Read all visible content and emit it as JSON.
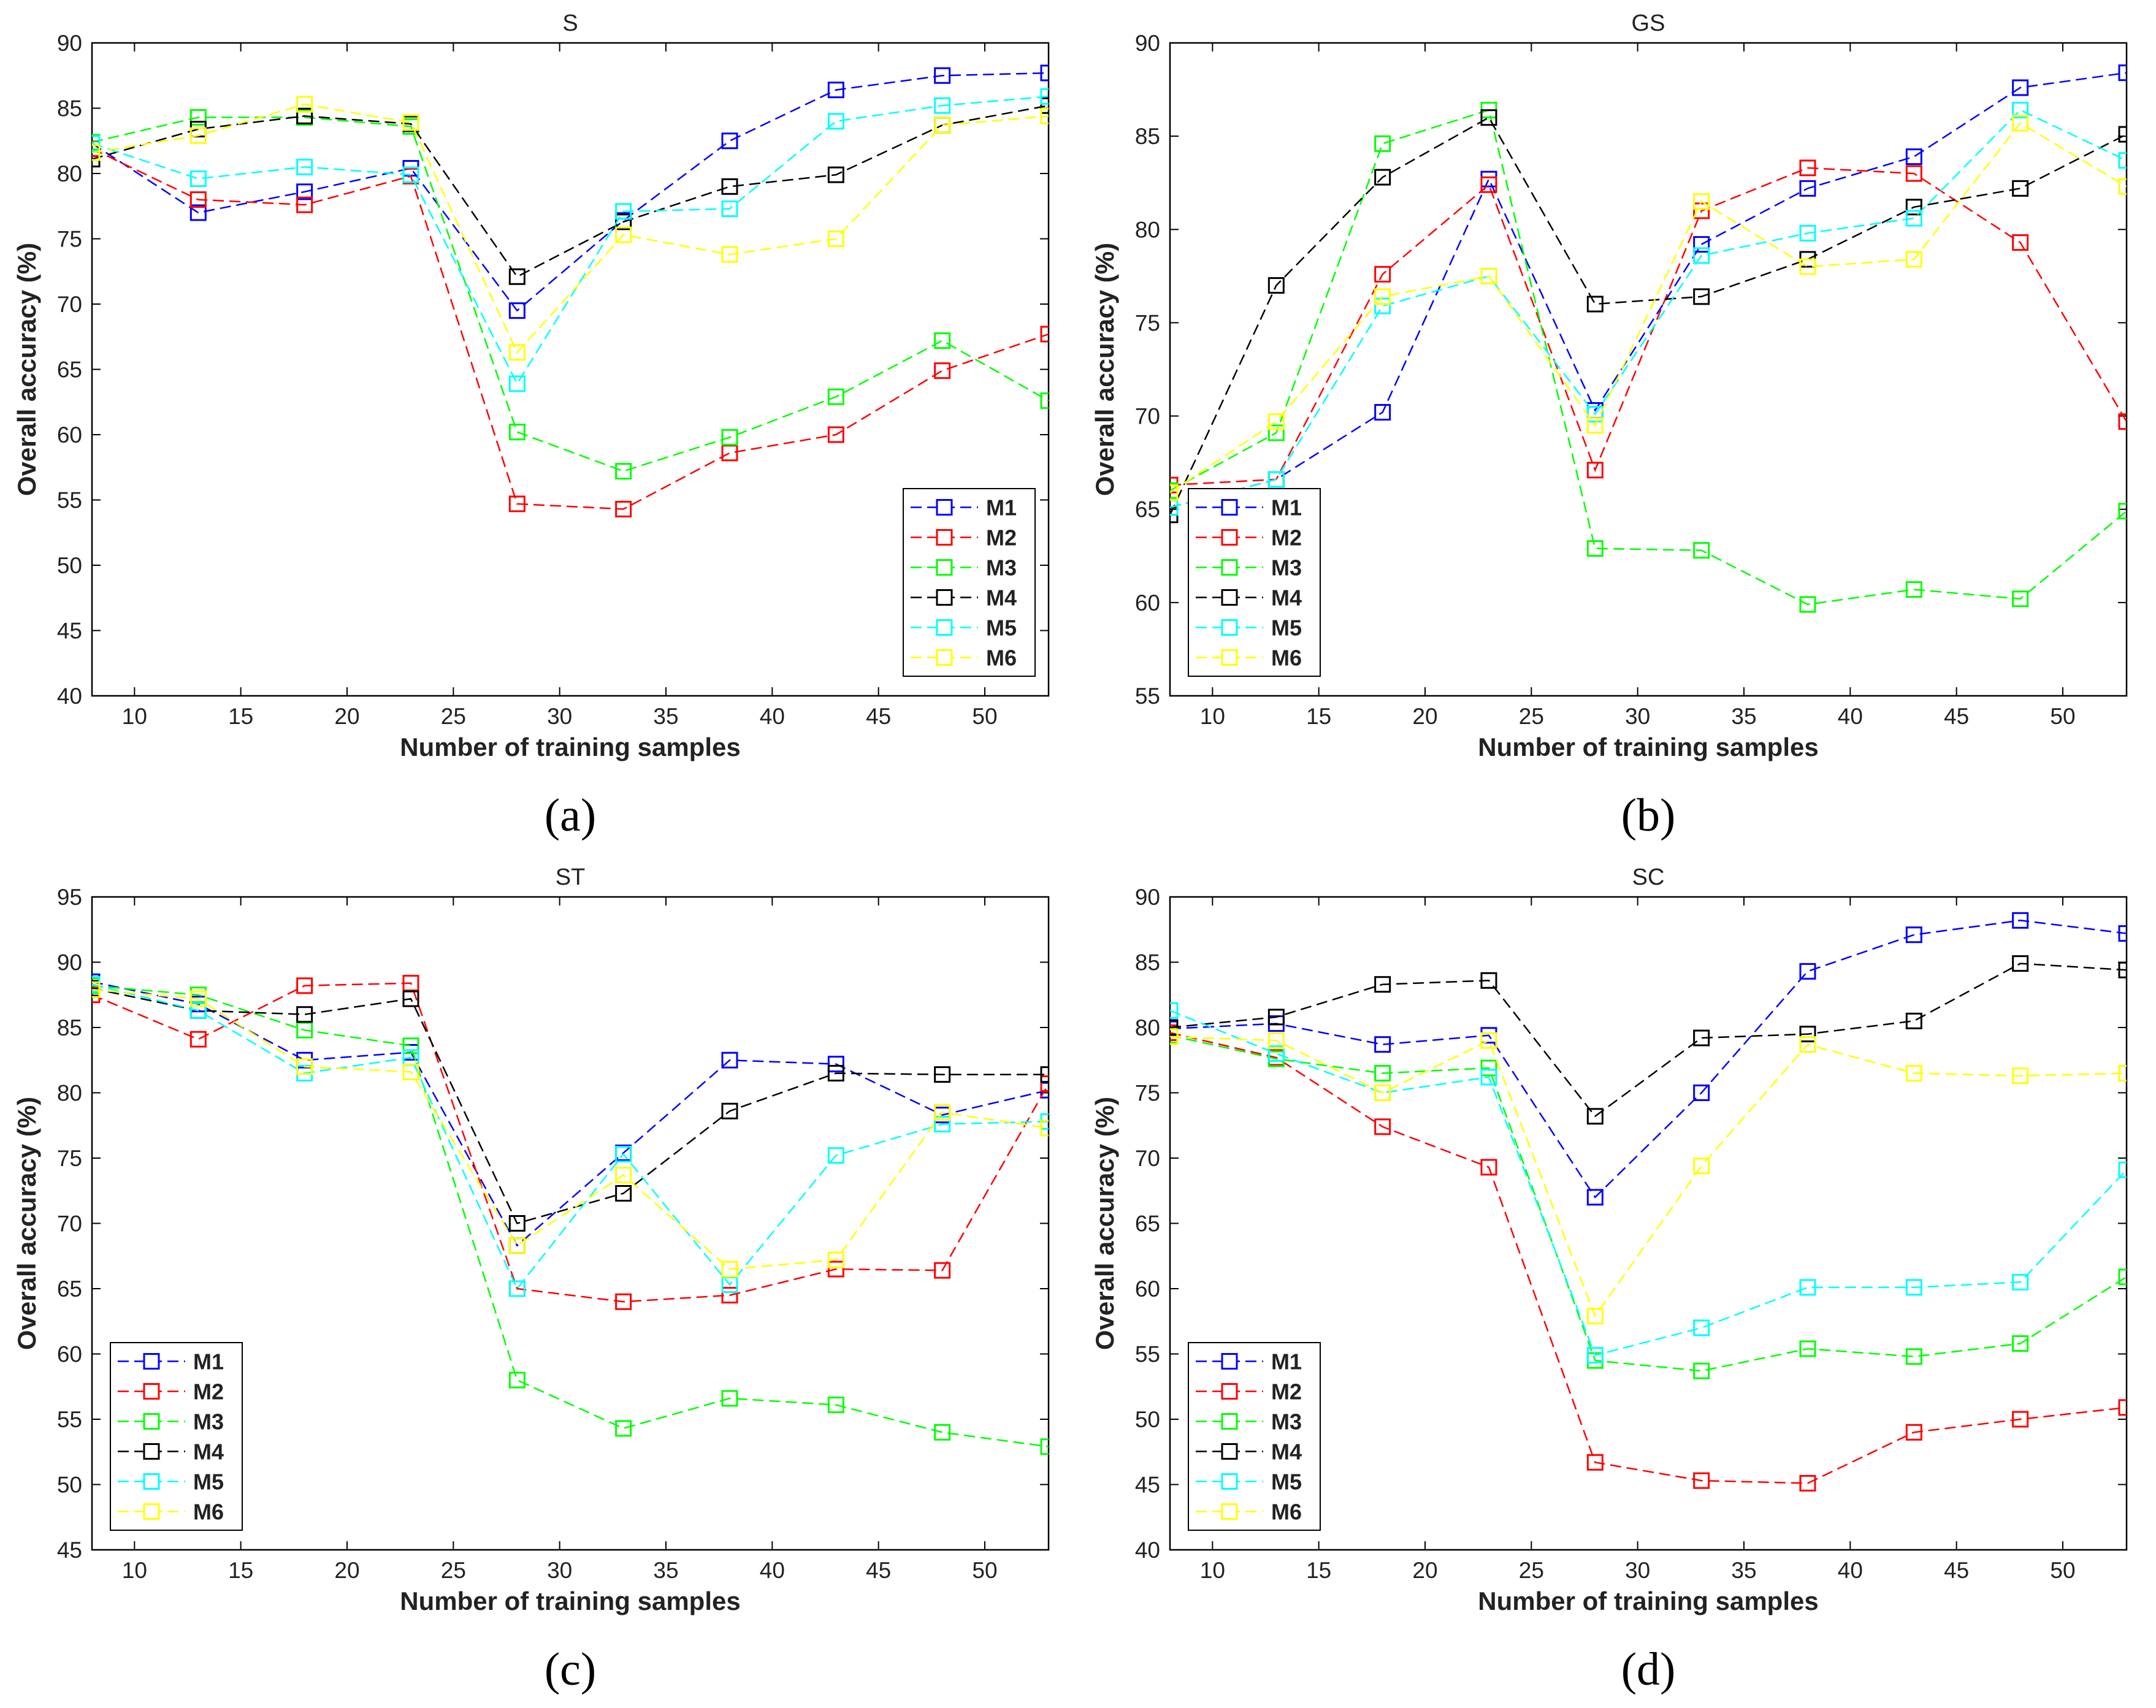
{
  "figure": {
    "panels": [
      {
        "label": "(a)",
        "title": "S",
        "xlabel": "Number of training samples",
        "ylabel": "Overall accuracy (%)"
      },
      {
        "label": "(b)",
        "title": "GS",
        "xlabel": "Number of training samples",
        "ylabel": "Overall accuracy (%)"
      },
      {
        "label": "(c)",
        "title": "ST",
        "xlabel": "Number of training samples",
        "ylabel": "Overall accuracy (%)"
      },
      {
        "label": "(d)",
        "title": "SC",
        "xlabel": "Number of training samples",
        "ylabel": "Overall accuracy (%)"
      }
    ]
  },
  "chart_data": [
    {
      "type": "line",
      "title": "S",
      "xlabel": "Number of training samples",
      "ylabel": "Overall accuracy (%)",
      "caption": "(a)",
      "xlim": [
        8,
        53
      ],
      "ylim": [
        40,
        90
      ],
      "xticks": [
        10,
        15,
        20,
        25,
        30,
        35,
        40,
        45,
        50
      ],
      "yticks": [
        40,
        45,
        50,
        55,
        60,
        65,
        70,
        75,
        80,
        85,
        90
      ],
      "legend_position": "bottom-right",
      "x": [
        8,
        13,
        18,
        23,
        28,
        33,
        38,
        43,
        48,
        53
      ],
      "series": [
        {
          "name": "M1",
          "color": "#0000ff",
          "values": [
            82.3,
            77.0,
            78.6,
            80.4,
            69.5,
            76.4,
            82.5,
            86.4,
            87.5,
            87.7
          ]
        },
        {
          "name": "M2",
          "color": "#ff0000",
          "values": [
            81.9,
            78.0,
            77.6,
            79.8,
            54.7,
            54.3,
            58.6,
            60.0,
            64.9,
            67.7
          ]
        },
        {
          "name": "M3",
          "color": "#00ff00",
          "values": [
            82.4,
            84.3,
            84.3,
            83.6,
            60.2,
            57.2,
            59.8,
            62.9,
            67.2,
            62.6
          ]
        },
        {
          "name": "M4",
          "color": "#000000",
          "values": [
            81.1,
            83.4,
            84.4,
            83.8,
            72.1,
            76.3,
            79.0,
            79.9,
            83.7,
            85.2
          ]
        },
        {
          "name": "M5",
          "color": "#00ffff",
          "values": [
            82.3,
            79.6,
            80.5,
            79.9,
            63.9,
            77.1,
            77.3,
            84.0,
            85.2,
            85.9
          ]
        },
        {
          "name": "M6",
          "color": "#ffff00",
          "values": [
            81.6,
            82.9,
            85.3,
            83.9,
            66.3,
            75.3,
            73.8,
            75.0,
            83.7,
            84.4
          ]
        }
      ]
    },
    {
      "type": "line",
      "title": "GS",
      "xlabel": "Number of training samples",
      "ylabel": "Overall accuracy (%)",
      "caption": "(b)",
      "xlim": [
        8,
        53
      ],
      "ylim": [
        55,
        90
      ],
      "xticks": [
        10,
        15,
        20,
        25,
        30,
        35,
        40,
        45,
        50
      ],
      "yticks": [
        55,
        60,
        65,
        70,
        75,
        80,
        85,
        90
      ],
      "legend_position": "bottom-left",
      "x": [
        8,
        13,
        18,
        23,
        28,
        33,
        38,
        43,
        48,
        53
      ],
      "series": [
        {
          "name": "M1",
          "color": "#0000ff",
          "values": [
            65.1,
            66.6,
            70.2,
            82.7,
            70.3,
            79.2,
            82.2,
            83.9,
            87.6,
            88.4
          ]
        },
        {
          "name": "M2",
          "color": "#ff0000",
          "values": [
            66.3,
            66.6,
            77.6,
            82.4,
            67.1,
            81.0,
            83.3,
            83.0,
            79.3,
            69.7
          ]
        },
        {
          "name": "M3",
          "color": "#00ff00",
          "values": [
            66.0,
            69.1,
            84.6,
            86.4,
            62.9,
            62.8,
            59.9,
            60.7,
            60.2,
            64.9
          ]
        },
        {
          "name": "M4",
          "color": "#000000",
          "values": [
            64.7,
            77.0,
            82.8,
            86.0,
            76.0,
            76.4,
            78.4,
            81.2,
            82.2,
            85.1
          ]
        },
        {
          "name": "M5",
          "color": "#00ffff",
          "values": [
            65.1,
            66.6,
            75.9,
            77.5,
            70.1,
            78.6,
            79.8,
            80.6,
            86.4,
            83.7
          ]
        },
        {
          "name": "M6",
          "color": "#ffff00",
          "values": [
            65.9,
            69.7,
            76.4,
            77.5,
            69.5,
            81.5,
            78.0,
            78.4,
            85.7,
            82.3
          ]
        }
      ]
    },
    {
      "type": "line",
      "title": "ST",
      "xlabel": "Number of training samples",
      "ylabel": "Overall accuracy (%)",
      "caption": "(c)",
      "xlim": [
        8,
        53
      ],
      "ylim": [
        45,
        95
      ],
      "xticks": [
        10,
        15,
        20,
        25,
        30,
        35,
        40,
        45,
        50
      ],
      "yticks": [
        45,
        50,
        55,
        60,
        65,
        70,
        75,
        80,
        85,
        90,
        95
      ],
      "legend_position": "bottom-left",
      "x": [
        8,
        13,
        18,
        23,
        28,
        33,
        38,
        43,
        48,
        53
      ],
      "series": [
        {
          "name": "M1",
          "color": "#0000ff",
          "values": [
            88.5,
            86.8,
            82.5,
            83.1,
            68.3,
            75.4,
            82.5,
            82.2,
            78.3,
            80.2
          ]
        },
        {
          "name": "M2",
          "color": "#ff0000",
          "values": [
            87.5,
            84.1,
            88.2,
            88.4,
            65.0,
            64.0,
            64.5,
            66.5,
            66.4,
            80.7
          ]
        },
        {
          "name": "M3",
          "color": "#00ff00",
          "values": [
            88.2,
            87.5,
            84.8,
            83.6,
            58.0,
            54.3,
            56.6,
            56.1,
            54.0,
            52.9
          ]
        },
        {
          "name": "M4",
          "color": "#000000",
          "values": [
            88.0,
            86.3,
            86.0,
            87.2,
            70.0,
            72.3,
            78.6,
            81.5,
            81.4,
            81.4
          ]
        },
        {
          "name": "M5",
          "color": "#00ffff",
          "values": [
            88.3,
            86.3,
            81.5,
            82.7,
            65.0,
            75.3,
            65.3,
            75.2,
            77.6,
            77.8
          ]
        },
        {
          "name": "M6",
          "color": "#ffff00",
          "values": [
            87.9,
            87.2,
            82.0,
            81.6,
            68.3,
            73.7,
            66.5,
            67.2,
            78.5,
            77.3
          ]
        }
      ]
    },
    {
      "type": "line",
      "title": "SC",
      "xlabel": "Number of training samples",
      "ylabel": "Overall accuracy (%)",
      "caption": "(d)",
      "xlim": [
        8,
        53
      ],
      "ylim": [
        40,
        90
      ],
      "xticks": [
        10,
        15,
        20,
        25,
        30,
        35,
        40,
        45,
        50
      ],
      "yticks": [
        40,
        45,
        50,
        55,
        60,
        65,
        70,
        75,
        80,
        85,
        90
      ],
      "legend_position": "bottom-left",
      "x": [
        8,
        13,
        18,
        23,
        28,
        33,
        38,
        43,
        48,
        53
      ],
      "series": [
        {
          "name": "M1",
          "color": "#0000ff",
          "values": [
            79.9,
            80.3,
            78.7,
            79.4,
            67.0,
            75.0,
            84.3,
            87.1,
            88.2,
            87.2
          ]
        },
        {
          "name": "M2",
          "color": "#ff0000",
          "values": [
            79.6,
            77.7,
            72.4,
            69.3,
            46.7,
            45.3,
            45.1,
            49.0,
            50.0,
            50.9
          ]
        },
        {
          "name": "M3",
          "color": "#00ff00",
          "values": [
            79.4,
            77.6,
            76.5,
            76.9,
            54.5,
            53.7,
            55.4,
            54.8,
            55.8,
            60.9
          ]
        },
        {
          "name": "M4",
          "color": "#000000",
          "values": [
            80.0,
            80.8,
            83.3,
            83.6,
            73.2,
            79.2,
            79.5,
            80.5,
            84.9,
            84.4
          ]
        },
        {
          "name": "M5",
          "color": "#00ffff",
          "values": [
            81.3,
            78.0,
            75.0,
            76.2,
            54.9,
            57.0,
            60.1,
            60.1,
            60.5,
            69.1
          ]
        },
        {
          "name": "M6",
          "color": "#ffff00",
          "values": [
            79.3,
            79.0,
            75.0,
            79.0,
            57.9,
            69.4,
            78.7,
            76.5,
            76.3,
            76.5
          ]
        }
      ]
    }
  ]
}
